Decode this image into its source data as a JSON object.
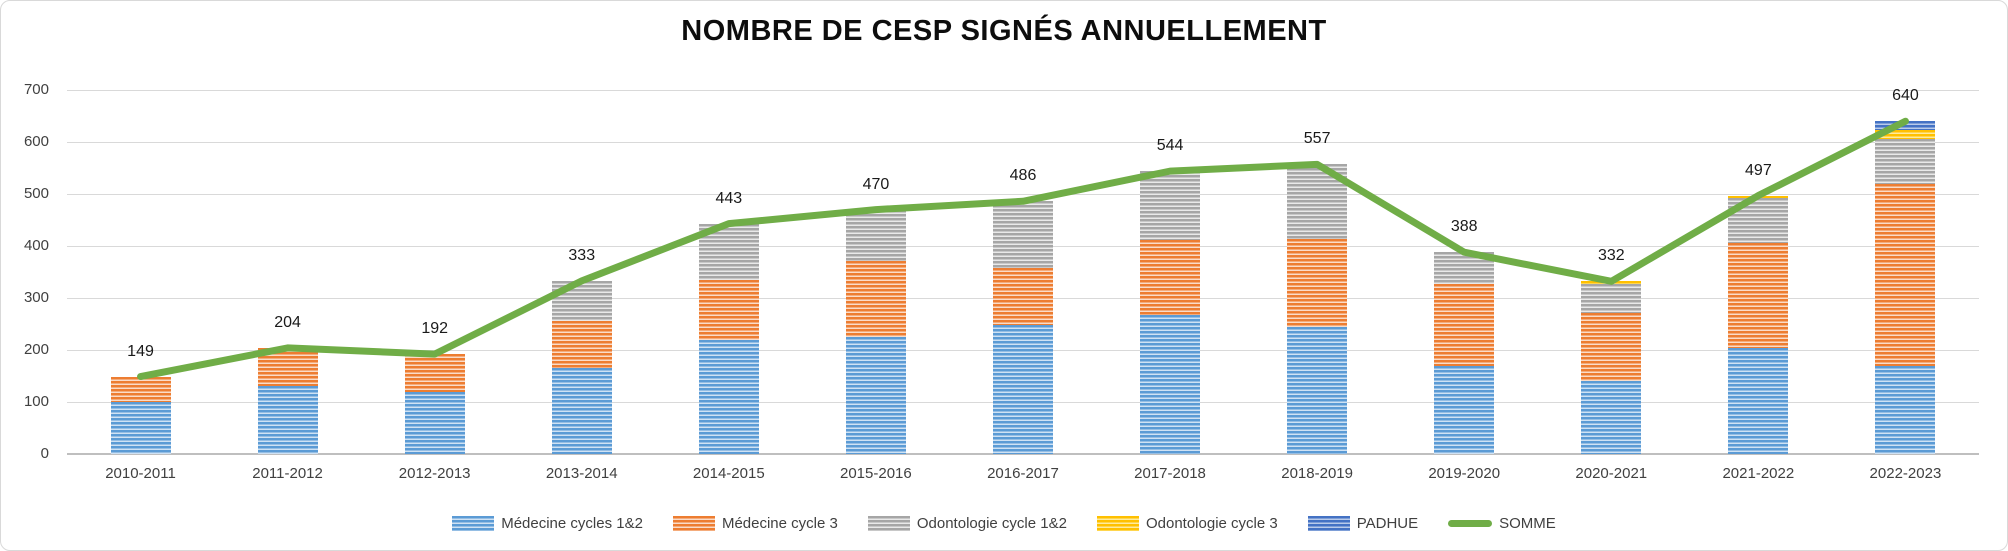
{
  "chart_data": {
    "type": "bar",
    "subtype": "stacked-bar-with-line",
    "title": "NOMBRE DE CESP SIGNÉS ANNUELLEMENT",
    "categories": [
      "2010-2011",
      "2011-2012",
      "2012-2013",
      "2013-2014",
      "2014-2015",
      "2015-2016",
      "2016-2017",
      "2017-2018",
      "2018-2019",
      "2019-2020",
      "2020-2021",
      "2021-2022",
      "2022-2023"
    ],
    "series": [
      {
        "name": "Médecine cycles 1&2",
        "color": "#5b9bd5",
        "light": "#cfe2f4",
        "values": [
          100,
          130,
          120,
          165,
          220,
          225,
          248,
          268,
          245,
          170,
          141,
          203,
          170
        ]
      },
      {
        "name": "Médecine cycle 3",
        "color": "#ed7d31",
        "light": "#fadcc8",
        "values": [
          49,
          74,
          72,
          90,
          115,
          146,
          110,
          143,
          168,
          156,
          130,
          202,
          350
        ]
      },
      {
        "name": "Odontologie cycle 1&2",
        "color": "#a6a6a6",
        "light": "#e9e9e9",
        "values": [
          0,
          0,
          0,
          78,
          108,
          99,
          128,
          133,
          144,
          62,
          56,
          88,
          85
        ]
      },
      {
        "name": "Odontologie cycle 3",
        "color": "#ffc000",
        "light": "#ffeb9c",
        "values": [
          0,
          0,
          0,
          0,
          0,
          0,
          0,
          0,
          0,
          0,
          5,
          4,
          18
        ]
      },
      {
        "name": "PADHUE",
        "color": "#4472c4",
        "light": "#b9cbea",
        "values": [
          0,
          0,
          0,
          0,
          0,
          0,
          0,
          0,
          0,
          0,
          0,
          0,
          17
        ]
      }
    ],
    "line_series": {
      "name": "SOMME",
      "color": "#70ad47",
      "values": [
        149,
        204,
        192,
        333,
        443,
        470,
        486,
        544,
        557,
        388,
        332,
        497,
        640
      ]
    },
    "totals": [
      149,
      204,
      192,
      333,
      443,
      470,
      486,
      544,
      557,
      388,
      332,
      497,
      640
    ],
    "y_axis": {
      "min": 0,
      "max": 700,
      "step": 100,
      "ticks": [
        "0",
        "100",
        "200",
        "300",
        "400",
        "500",
        "600",
        "700"
      ]
    },
    "grid": true,
    "legend_position": "bottom"
  }
}
